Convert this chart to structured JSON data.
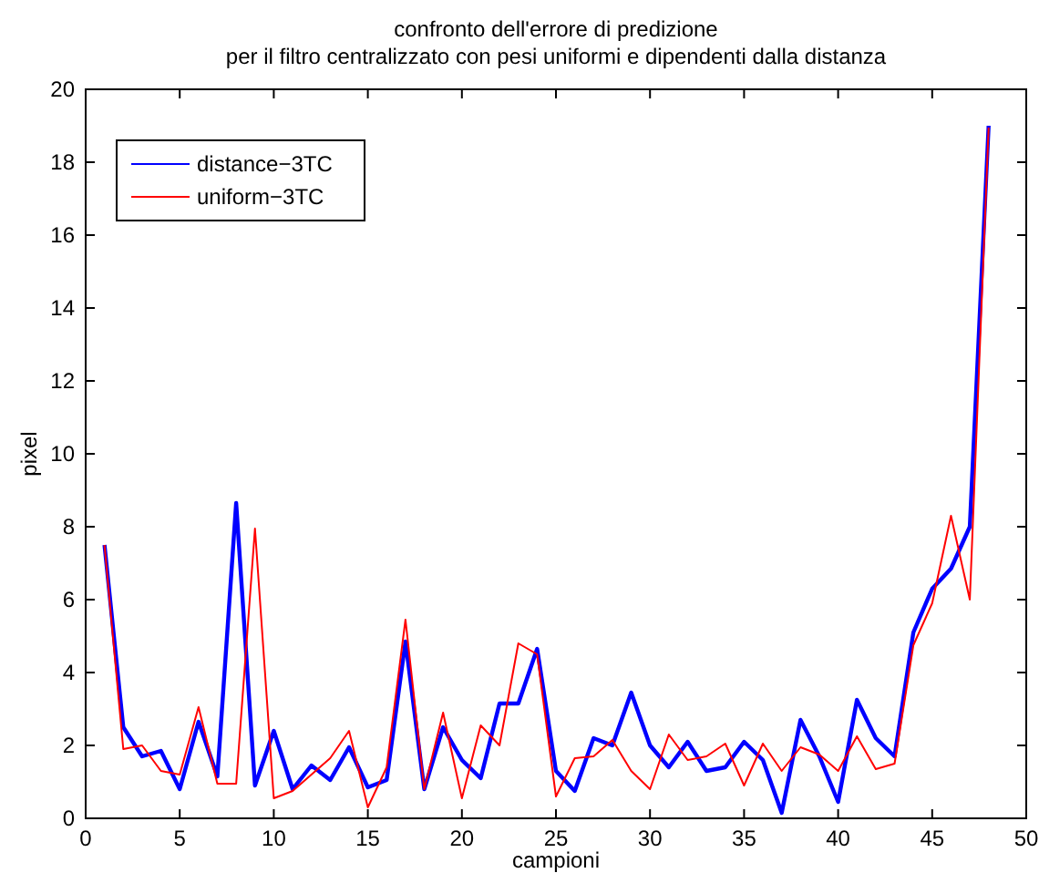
{
  "chart_data": {
    "type": "line",
    "title": "confronto dell'errore di predizione\nper il filtro centralizzato con pesi uniformi e dipendenti dalla distanza",
    "xlabel": "campioni",
    "ylabel": "pixel",
    "x": [
      1,
      2,
      3,
      4,
      5,
      6,
      7,
      8,
      9,
      10,
      11,
      12,
      13,
      14,
      15,
      16,
      17,
      18,
      19,
      20,
      21,
      22,
      23,
      24,
      25,
      26,
      27,
      28,
      29,
      30,
      31,
      32,
      33,
      34,
      35,
      36,
      37,
      38,
      39,
      40,
      41,
      42,
      43,
      44,
      45,
      46,
      47,
      48
    ],
    "series": [
      {
        "name": "distance−3TC",
        "color": "#0000ff",
        "values": [
          7.5,
          2.5,
          1.7,
          1.85,
          0.8,
          2.65,
          1.15,
          8.65,
          0.9,
          2.4,
          0.8,
          1.45,
          1.05,
          1.95,
          0.85,
          1.05,
          4.85,
          0.8,
          2.5,
          1.6,
          1.1,
          3.15,
          3.15,
          4.65,
          1.3,
          0.75,
          2.2,
          2.0,
          3.45,
          2.0,
          1.4,
          2.1,
          1.3,
          1.4,
          2.1,
          1.6,
          0.15,
          2.7,
          1.7,
          0.45,
          3.25,
          2.2,
          1.7,
          5.1,
          6.3,
          6.85,
          8.0,
          19.0
        ]
      },
      {
        "name": "uniform−3TC",
        "color": "#ff0000",
        "values": [
          7.5,
          1.9,
          2.0,
          1.3,
          1.2,
          3.05,
          0.95,
          0.95,
          7.95,
          0.55,
          0.75,
          1.2,
          1.65,
          2.4,
          0.3,
          1.4,
          5.45,
          0.8,
          2.9,
          0.55,
          2.55,
          2.0,
          4.8,
          4.5,
          0.6,
          1.65,
          1.7,
          2.15,
          1.3,
          0.8,
          2.3,
          1.6,
          1.7,
          2.05,
          0.9,
          2.05,
          1.3,
          1.95,
          1.75,
          1.3,
          2.25,
          1.35,
          1.5,
          4.75,
          5.9,
          8.3,
          6.0,
          18.95
        ]
      }
    ],
    "xlim": [
      0,
      50
    ],
    "xticks": [
      0,
      5,
      10,
      15,
      20,
      25,
      30,
      35,
      40,
      45,
      50
    ],
    "ylim": [
      0,
      20
    ],
    "yticks": [
      0,
      2,
      4,
      6,
      8,
      10,
      12,
      14,
      16,
      18,
      20
    ],
    "legend": "top left",
    "grid": false,
    "marker": "none",
    "line_style": "solid"
  }
}
